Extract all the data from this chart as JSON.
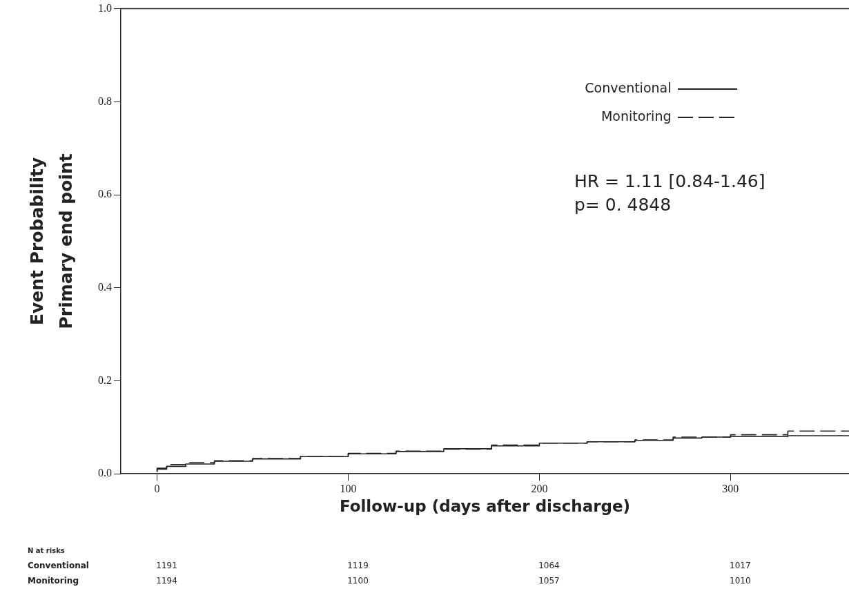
{
  "chart_data": {
    "type": "step",
    "xlabel": "Follow-up (days after discharge)",
    "ylabel": "Event Probability\nPrimary end point",
    "xlim": [
      -19,
      362
    ],
    "xticks": [
      0,
      100,
      200,
      300
    ],
    "ylim": [
      0,
      1
    ],
    "yticks": [
      {
        "value": 0,
        "label": "0.0"
      },
      {
        "value": 0.2,
        "label": "0.2"
      },
      {
        "value": 0.4,
        "label": "0.4"
      },
      {
        "value": 0.6,
        "label": "0.6"
      },
      {
        "value": 0.8,
        "label": "0.8"
      },
      {
        "value": 1,
        "label": "1.0"
      }
    ],
    "grid": false,
    "legend": "top right",
    "marker": "none",
    "series": [
      {
        "name": "Conventional",
        "color": "#222222",
        "line_style": "solid",
        "x": [
          0,
          5,
          15,
          30,
          50,
          75,
          100,
          125,
          150,
          175,
          200,
          225,
          250,
          270,
          285,
          300,
          330,
          362
        ],
        "values": [
          0.005,
          0.01,
          0.016,
          0.021,
          0.027,
          0.032,
          0.037,
          0.043,
          0.048,
          0.054,
          0.06,
          0.066,
          0.069,
          0.072,
          0.077,
          0.079,
          0.08,
          0.082
        ]
      },
      {
        "name": "Monitoring",
        "color": "#222222",
        "line_style": "dashed",
        "x": [
          0,
          5,
          15,
          30,
          50,
          75,
          100,
          125,
          150,
          175,
          200,
          225,
          250,
          270,
          300,
          330,
          362
        ],
        "values": [
          0.004,
          0.012,
          0.02,
          0.024,
          0.028,
          0.033,
          0.037,
          0.044,
          0.049,
          0.053,
          0.062,
          0.066,
          0.069,
          0.073,
          0.079,
          0.084,
          0.092
        ]
      }
    ],
    "annotations": [
      "HR = 1.11 [0.84-1.46]",
      "p=  0. 4848",
      "N at risks",
      "Conventional",
      "1191",
      "1119",
      "1064",
      "1017",
      "Monitoring",
      "1194",
      "1100",
      "1057",
      "1010"
    ]
  }
}
